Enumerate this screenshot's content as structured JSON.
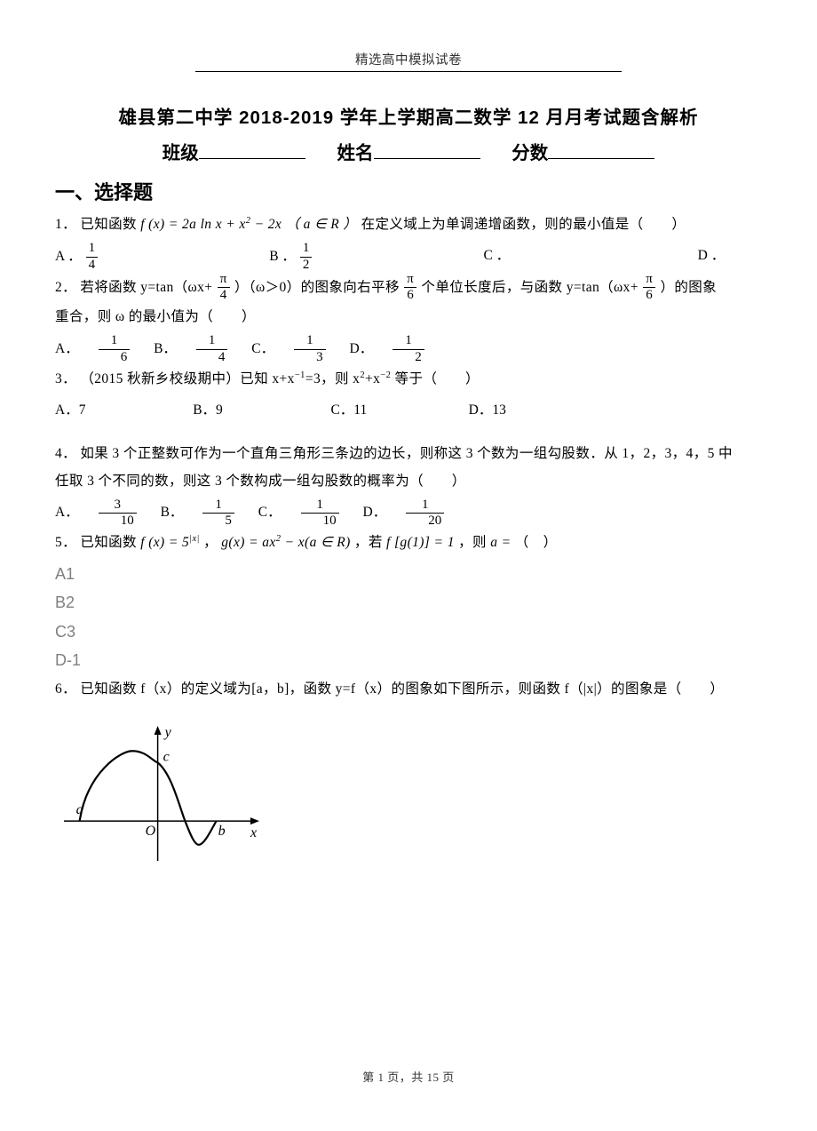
{
  "header": "精选高中模拟试卷",
  "title": "雄县第二中学 2018-2019 学年上学期高二数学 12 月月考试题含解析",
  "fields": {
    "class": "班级",
    "name": "姓名",
    "score": "分数"
  },
  "section1": "一、选择题",
  "q1": {
    "prefix": "1．  已知函数 ",
    "expr_f": "f (x) = 2a ln x + x",
    "expr_sq": "2",
    "expr_tail": " − 2x",
    "paren": "（ a ∈ R ）",
    "mid": "在定义域上为单调递增函数，则的最小值是（　　）",
    "optA": "A ．",
    "optB": "B ．",
    "optC": "C ．",
    "optD": "D ．",
    "fracA_num": "1",
    "fracA_den": "4",
    "fracB_num": "1",
    "fracB_den": "2"
  },
  "q2": {
    "l1a": "2．  若将函数 y=tan（ωx+",
    "l1b": "）（ω＞0）的图象向右平移",
    "l1c": "个单位长度后，与函数 y=tan（ωx+",
    "l1d": "）的图象",
    "l2": "重合，则 ω 的最小值为（　　）",
    "frac1_num": "π",
    "frac1_den": "4",
    "frac2_num": "π",
    "frac2_den": "6",
    "frac3_num": "π",
    "frac3_den": "6",
    "optA": "A．",
    "optB": "B．",
    "optC": "C．",
    "optD": "D．",
    "fA_num": "1",
    "fA_den": "6",
    "fB_num": "1",
    "fB_den": "4",
    "fC_num": "1",
    "fC_den": "3",
    "fD_num": "1",
    "fD_den": "2"
  },
  "q3": {
    "l1": "3． （2015 秋新乡校级期中）已知 x+x",
    "sup1": "−1",
    "mid": "=3，则 x",
    "sup2": "2",
    "plus": "+x",
    "sup3": "−2",
    "tail": " 等于（　　）",
    "optA": "A．7",
    "optB": "B．9",
    "optC": "C．11",
    "optD": "D．13"
  },
  "q4": {
    "l1": "4．  如果 3 个正整数可作为一个直角三角形三条边的边长，则称这 3 个数为一组勾股数．从 1，2，3，4，5 中",
    "l2": "任取 3 个不同的数，则这 3 个数构成一组勾股数的概率为（　　）",
    "optA": "A．",
    "optB": "B．",
    "optC": "C．",
    "optD": "D．",
    "fA_num": "3",
    "fA_den": "10",
    "fB_num": "1",
    "fB_den": "5",
    "fC_num": "1",
    "fC_den": "10",
    "fD_num": "1",
    "fD_den": "20"
  },
  "q5": {
    "l1a": "5．  已知函数",
    "f1": "f (x) = 5",
    "f1sup": "|x|",
    "comma1": "，",
    "g": "g(x) = ax",
    "gsup": "2",
    "gtail": " − x(a ∈ R)",
    "comma2": "，若",
    "fg": "f [g(1)] = 1",
    "comma3": "，则",
    "aeq": "a =",
    "paren": "（　）",
    "A": "A1",
    "B": "B2",
    "C": "C3",
    "D": "D-1"
  },
  "q6": {
    "text": "6．  已知函数 f（x）的定义域为[a，b]，函数 y=f（x）的图象如下图所示，则函数 f（|x|）的图象是（　　）"
  },
  "graph": {
    "axis_color": "#000000",
    "curve_color": "#000000",
    "curve_width": 2.2,
    "background": "#ffffff",
    "x_range": [
      -2.4,
      2.6
    ],
    "y_range": [
      -0.8,
      2.2
    ],
    "labels": {
      "x": "x",
      "y": "y",
      "O": "O",
      "a": "a",
      "b": "b",
      "c": "c"
    },
    "label_fontsize": 16,
    "label_font": "italic Times New Roman",
    "a_x": -2.0,
    "b_x": 1.5,
    "c_y": 1.35,
    "peak_x": -0.65,
    "peak_y": 1.62,
    "dip_x": 1.05,
    "dip_y": -0.55
  },
  "footer": {
    "pre": "第 ",
    "page": "1",
    "mid": " 页，共 ",
    "total": "15",
    "post": " 页"
  }
}
